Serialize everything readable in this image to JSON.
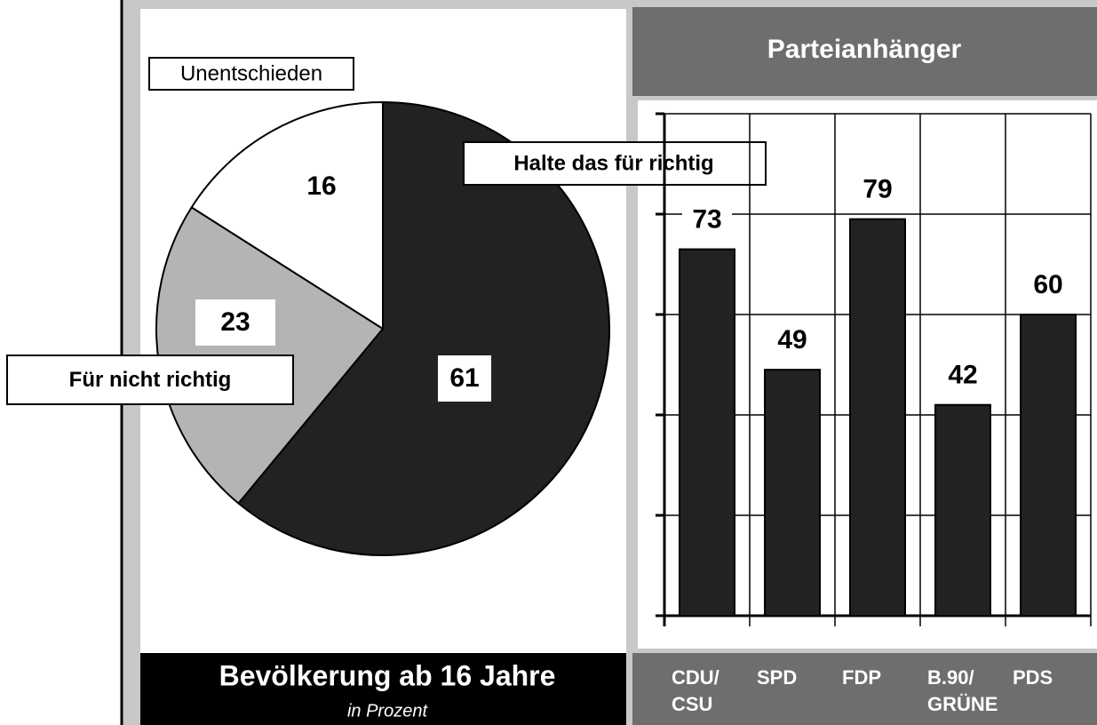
{
  "chart_data": [
    {
      "type": "pie",
      "title": "Bevölkerung ab 16 Jahre",
      "subtitle": "in Prozent",
      "categories": [
        "Halte das für richtig",
        "Für nicht richtig",
        "Unentschieden"
      ],
      "values": [
        61,
        23,
        16
      ],
      "colors": [
        "#222222",
        "#b4b4b4",
        "#ffffff"
      ]
    },
    {
      "type": "bar",
      "title": "Parteianhänger",
      "categories": [
        "CDU/\nCSU",
        "SPD",
        "FDP",
        "B.90/\nGRÜNE",
        "PDS"
      ],
      "values": [
        73,
        49,
        79,
        42,
        60
      ],
      "color": "#222222",
      "ylim": [
        0,
        100
      ],
      "yticks": [
        0,
        20,
        40,
        60,
        80,
        100
      ],
      "grid": true
    }
  ]
}
